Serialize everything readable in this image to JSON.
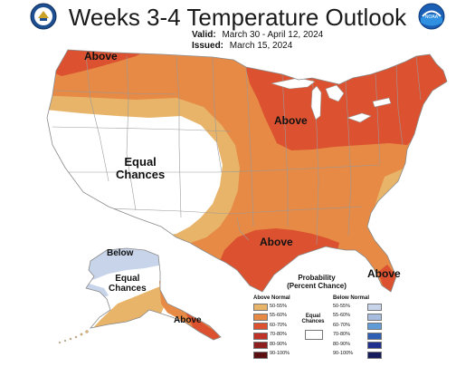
{
  "header": {
    "title": "Weeks 3-4 Temperature Outlook",
    "valid_label": "Valid:",
    "valid_dates": "March 30 - April 12, 2024",
    "issued_label": "Issued:",
    "issued_date": "March 15, 2024"
  },
  "logos": {
    "left": "commerce-seal",
    "right": "noaa-logo",
    "right_text": "NOAA"
  },
  "map_labels": {
    "pacific_nw": "Above",
    "great_lakes": "Above",
    "west_line1": "Equal",
    "west_line2": "Chances",
    "texas": "Above",
    "florida": "Above",
    "alaska_north": "Below",
    "alaska_mid_line1": "Equal",
    "alaska_mid_line2": "Chances",
    "alaska_south": "Above"
  },
  "legend": {
    "title_line1": "Probability",
    "title_line2": "(Percent Chance)",
    "above_header": "Above Normal",
    "below_header": "Below Normal",
    "equal_line1": "Equal",
    "equal_line2": "Chances",
    "above": [
      {
        "label": "50-55%",
        "color": "#e8b46a"
      },
      {
        "label": "55-60%",
        "color": "#e68a45"
      },
      {
        "label": "60-70%",
        "color": "#dc5230"
      },
      {
        "label": "70-80%",
        "color": "#c03328"
      },
      {
        "label": "80-90%",
        "color": "#8e1f1f"
      },
      {
        "label": "90-100%",
        "color": "#5a1010"
      }
    ],
    "below": [
      {
        "label": "50-55%",
        "color": "#c8d4ea"
      },
      {
        "label": "55-60%",
        "color": "#a7bde0"
      },
      {
        "label": "60-70%",
        "color": "#5f9bd6"
      },
      {
        "label": "70-80%",
        "color": "#2f5fb5"
      },
      {
        "label": "80-90%",
        "color": "#1f2f8e"
      },
      {
        "label": "90-100%",
        "color": "#141a5c"
      }
    ]
  },
  "map_colors": {
    "equal": "#ffffff",
    "above_50_55": "#e8b46a",
    "above_55_60": "#e68a45",
    "above_60_70": "#dc5230",
    "below_50_55": "#c8d4ea",
    "border": "#9a9a9a"
  }
}
